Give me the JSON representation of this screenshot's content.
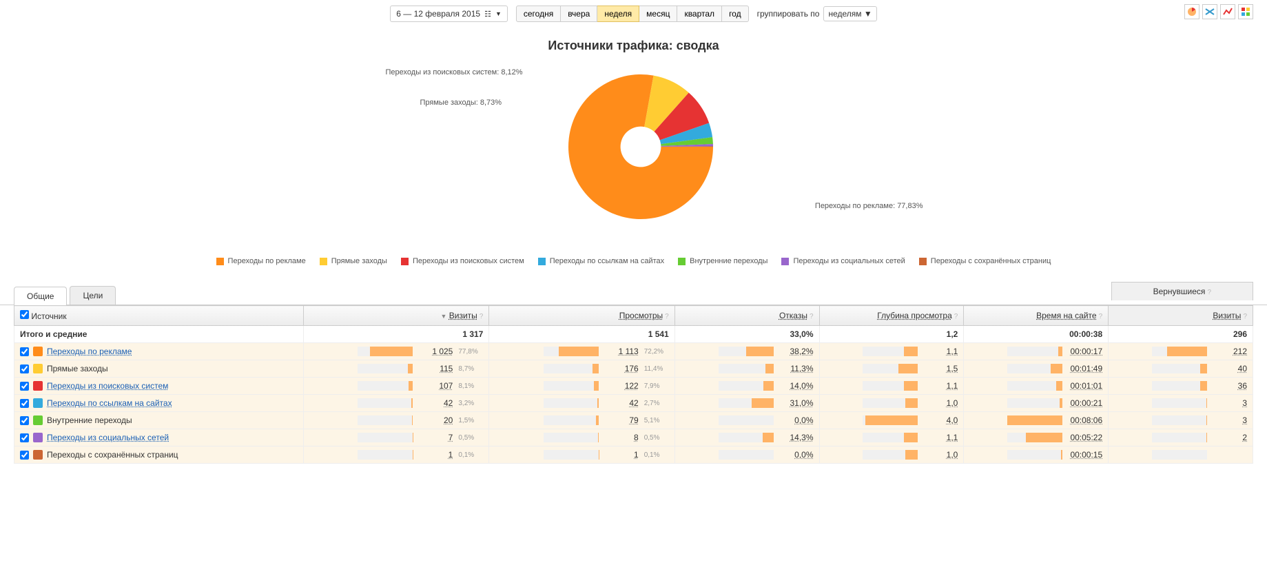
{
  "toolbar": {
    "date_range": "6 — 12 февраля 2015",
    "periods": [
      {
        "label": "сегодня",
        "active": false
      },
      {
        "label": "вчера",
        "active": false
      },
      {
        "label": "неделя",
        "active": true
      },
      {
        "label": "месяц",
        "active": false
      },
      {
        "label": "квартал",
        "active": false
      },
      {
        "label": "год",
        "active": false
      }
    ],
    "group_label": "группировать по",
    "group_value": "неделям ▼"
  },
  "chart": {
    "title": "Источники трафика: сводка",
    "type": "donut",
    "inner_radius_ratio": 0.28,
    "slices": [
      {
        "label": "Переходы по рекламе",
        "value": 77.83,
        "color": "#ff8c1a",
        "callout": "Переходы по рекламе: 77,83%"
      },
      {
        "label": "Прямые заходы",
        "value": 8.73,
        "color": "#ffcc33",
        "callout": "Прямые заходы: 8,73%"
      },
      {
        "label": "Переходы из поисковых систем",
        "value": 8.12,
        "color": "#e63333",
        "callout": "Переходы из поисковых систем: 8,12%"
      },
      {
        "label": "Переходы по ссылкам на сайтах",
        "value": 3.2,
        "color": "#33aadd"
      },
      {
        "label": "Внутренние переходы",
        "value": 1.52,
        "color": "#66cc33"
      },
      {
        "label": "Переходы из социальных сетей",
        "value": 0.53,
        "color": "#9966cc"
      },
      {
        "label": "Переходы с сохранённых страниц",
        "value": 0.07,
        "color": "#cc6633"
      }
    ],
    "legend": [
      {
        "label": "Переходы по рекламе",
        "color": "#ff8c1a"
      },
      {
        "label": "Прямые заходы",
        "color": "#ffcc33"
      },
      {
        "label": "Переходы из поисковых систем",
        "color": "#e63333"
      },
      {
        "label": "Переходы по ссылкам на сайтах",
        "color": "#33aadd"
      },
      {
        "label": "Внутренние переходы",
        "color": "#66cc33"
      },
      {
        "label": "Переходы из социальных сетей",
        "color": "#9966cc"
      },
      {
        "label": "Переходы с сохранённых страниц",
        "color": "#cc6633"
      }
    ]
  },
  "tabs": [
    {
      "label": "Общие",
      "active": true
    },
    {
      "label": "Цели",
      "active": false
    }
  ],
  "returning_header": "Вернувшиеся",
  "table": {
    "columns": [
      "Источник",
      "Визиты",
      "Просмотры",
      "Отказы",
      "Глубина просмотра",
      "Время на сайте",
      "Визиты"
    ],
    "totals_label": "Итого и средние",
    "totals": {
      "visits": "1 317",
      "views": "1 541",
      "bounce": "33,0%",
      "depth": "1,2",
      "time": "00:00:38",
      "ret_visits": "296"
    },
    "rows": [
      {
        "icon_color": "#ff8c1a",
        "name": "Переходы по рекламе",
        "link": true,
        "visits": "1 025",
        "visits_pct": "77,8%",
        "visits_bar": 77.8,
        "views": "1 113",
        "views_pct": "72,2%",
        "views_bar": 72.2,
        "bounce": "38,2%",
        "bounce_bar": 50,
        "depth": "1,1",
        "depth_bar": 25,
        "time": "00:00:17",
        "time_bar": 8,
        "ret": "212",
        "ret_bar": 72
      },
      {
        "icon_color": "#ffcc33",
        "name": "Прямые заходы",
        "link": false,
        "visits": "115",
        "visits_pct": "8,7%",
        "visits_bar": 8.7,
        "views": "176",
        "views_pct": "11,4%",
        "views_bar": 11.4,
        "bounce": "11,3%",
        "bounce_bar": 15,
        "depth": "1,5",
        "depth_bar": 35,
        "time": "00:01:49",
        "time_bar": 22,
        "ret": "40",
        "ret_bar": 13
      },
      {
        "icon_color": "#e63333",
        "name": "Переходы из поисковых систем",
        "link": true,
        "visits": "107",
        "visits_pct": "8,1%",
        "visits_bar": 8.1,
        "views": "122",
        "views_pct": "7,9%",
        "views_bar": 7.9,
        "bounce": "14,0%",
        "bounce_bar": 18,
        "depth": "1,1",
        "depth_bar": 25,
        "time": "00:01:01",
        "time_bar": 12,
        "ret": "36",
        "ret_bar": 12
      },
      {
        "icon_color": "#33aadd",
        "name": "Переходы по ссылкам на сайтах",
        "link": true,
        "visits": "42",
        "visits_pct": "3,2%",
        "visits_bar": 3.2,
        "views": "42",
        "views_pct": "2,7%",
        "views_bar": 2.7,
        "bounce": "31,0%",
        "bounce_bar": 40,
        "depth": "1,0",
        "depth_bar": 23,
        "time": "00:00:21",
        "time_bar": 5,
        "ret": "3",
        "ret_bar": 1
      },
      {
        "icon_color": "#66cc33",
        "name": "Внутренние переходы",
        "link": false,
        "visits": "20",
        "visits_pct": "1,5%",
        "visits_bar": 1.5,
        "views": "79",
        "views_pct": "5,1%",
        "views_bar": 5.1,
        "bounce": "0,0%",
        "bounce_bar": 0,
        "depth": "4,0",
        "depth_bar": 95,
        "time": "00:08:06",
        "time_bar": 100,
        "ret": "3",
        "ret_bar": 1
      },
      {
        "icon_color": "#9966cc",
        "name": "Переходы из социальных сетей",
        "link": true,
        "visits": "7",
        "visits_pct": "0,5%",
        "visits_bar": 0.5,
        "views": "8",
        "views_pct": "0,5%",
        "views_bar": 0.5,
        "bounce": "14,3%",
        "bounce_bar": 19,
        "depth": "1,1",
        "depth_bar": 25,
        "time": "00:05:22",
        "time_bar": 66,
        "ret": "2",
        "ret_bar": 1
      },
      {
        "icon_color": "#cc6633",
        "name": "Переходы с сохранённых страниц",
        "link": false,
        "visits": "1",
        "visits_pct": "0,1%",
        "visits_bar": 0.1,
        "views": "1",
        "views_pct": "0,1%",
        "views_bar": 0.1,
        "bounce": "0,0%",
        "bounce_bar": 0,
        "depth": "1,0",
        "depth_bar": 23,
        "time": "00:00:15",
        "time_bar": 3,
        "ret": "",
        "ret_bar": 0
      }
    ]
  },
  "colors": {
    "bar": "#ffb366",
    "track": "#f5f5f5"
  }
}
